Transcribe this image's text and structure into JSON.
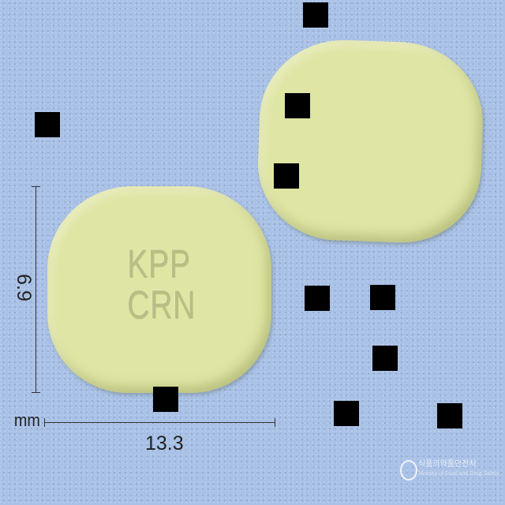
{
  "image": {
    "subject": "tablet-photo",
    "background_color": "#a9c1e6",
    "tablet_color": "#dfe5a3"
  },
  "imprint": {
    "line1": "KPP",
    "line2": "CRN"
  },
  "dimensions": {
    "height": "6.9",
    "width": "13.3",
    "unit": "mm"
  },
  "watermark": {
    "title": "식품의약품안전처",
    "subtitle": "Ministry of Food and Drug Safety"
  }
}
